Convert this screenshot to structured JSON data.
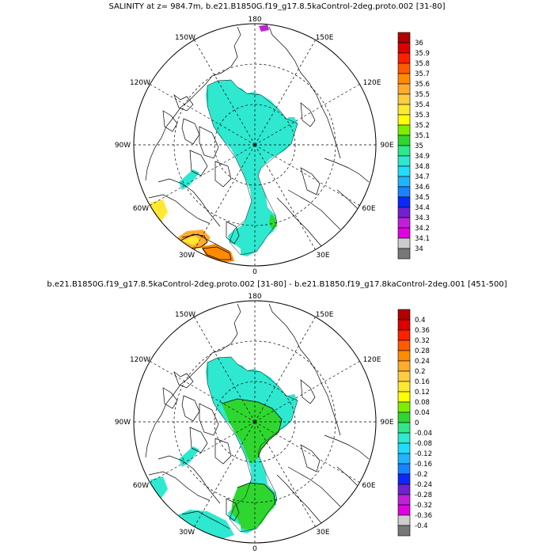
{
  "panel1": {
    "title": "SALINITY at z= 984.7m, b.e21.B1850G.f19_g17.8.5kaControl-2deg.proto.002 [31-80]",
    "lon_labels": {
      "n180": "180",
      "e150": "150E",
      "e120": "120E",
      "e90": "90E",
      "e60": "60E",
      "e30": "30E",
      "s0": "0",
      "w30": "30W",
      "w60": "60W",
      "w90": "90W",
      "w120": "120W",
      "w150": "150W"
    },
    "colorbar": {
      "levels": [
        "36",
        "35.9",
        "35.8",
        "35.7",
        "35.6",
        "35.5",
        "35.4",
        "35.3",
        "35.2",
        "35.1",
        "35",
        "34.9",
        "34.8",
        "34.7",
        "34.6",
        "34.5",
        "34.4",
        "34.3",
        "34.2",
        "34.1",
        "34"
      ],
      "colors": [
        "#b00000",
        "#dd0000",
        "#ff2000",
        "#ff5a00",
        "#ff8c00",
        "#ffab30",
        "#ffcc40",
        "#ffe830",
        "#ffff00",
        "#7cee00",
        "#2fd62f",
        "#2ee88a",
        "#2ee8d0",
        "#20dcff",
        "#20b4ff",
        "#1a82ff",
        "#0a28ff",
        "#7020d0",
        "#c020d8",
        "#e000e0",
        "#cccccc",
        "#777777"
      ]
    }
  },
  "panel2": {
    "title": "b.e21.B1850G.f19_g17.8.5kaControl-2deg.proto.002 [31-80] - b.e21.B1850.f19_g17.8kaControl-2deg.001 [451-500]",
    "lon_labels": {
      "n180": "180",
      "e150": "150E",
      "e120": "120E",
      "e90": "90E",
      "e60": "60E",
      "e30": "30E",
      "s0": "0",
      "w30": "30W",
      "w60": "60W",
      "w90": "90W",
      "w120": "120W",
      "w150": "150W"
    },
    "colorbar": {
      "levels": [
        "0.4",
        "0.36",
        "0.32",
        "0.28",
        "0.24",
        "0.2",
        "0.16",
        "0.12",
        "0.08",
        "0.04",
        "0",
        "-0.04",
        "-0.08",
        "-0.12",
        "-0.16",
        "-0.2",
        "-0.24",
        "-0.28",
        "-0.32",
        "-0.36",
        "-0.4"
      ],
      "colors": [
        "#b00000",
        "#dd0000",
        "#ff2000",
        "#ff5a00",
        "#ff8c00",
        "#ffab30",
        "#ffcc40",
        "#ffe830",
        "#ffff00",
        "#7cee00",
        "#2fd62f",
        "#2ee88a",
        "#2ee8d0",
        "#20dcff",
        "#20b4ff",
        "#1a82ff",
        "#0a28ff",
        "#7020d0",
        "#c020d8",
        "#e000e0",
        "#cccccc",
        "#777777"
      ]
    }
  }
}
